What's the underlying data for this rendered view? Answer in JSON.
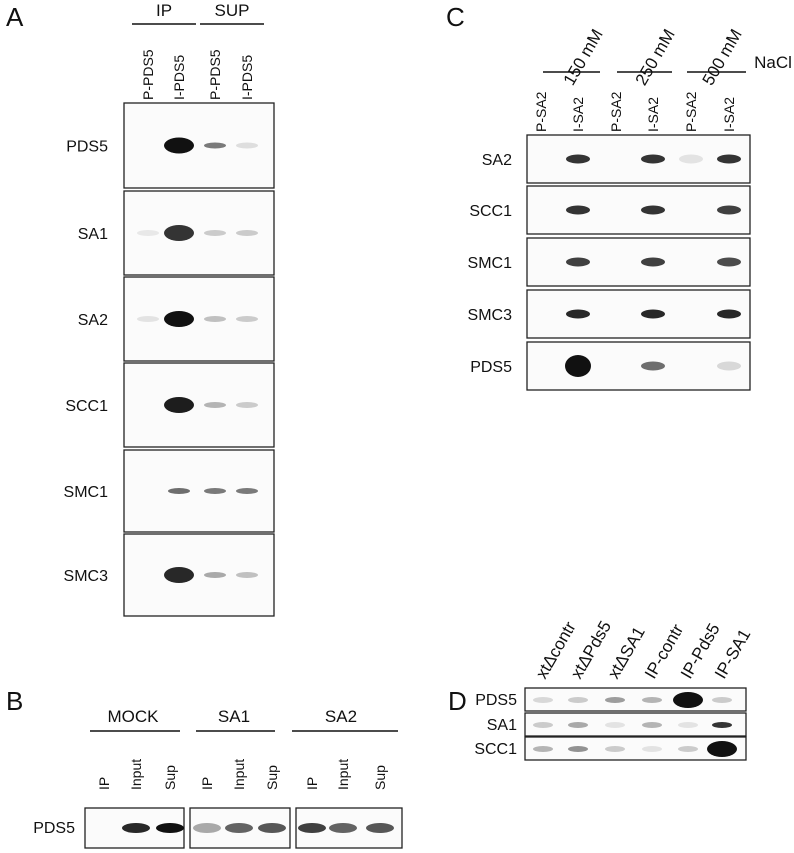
{
  "panels": {
    "A": {
      "letter": "A",
      "groups": [
        "IP",
        "SUP"
      ],
      "lanes": [
        "P-PDS5",
        "I-PDS5",
        "P-PDS5",
        "I-PDS5"
      ],
      "rows": [
        {
          "label": "PDS5",
          "intensity": [
            0,
            1.0,
            0.55,
            0.12
          ]
        },
        {
          "label": "SA1",
          "intensity": [
            0.08,
            0.85,
            0.2,
            0.2
          ]
        },
        {
          "label": "SA2",
          "intensity": [
            0.1,
            1.0,
            0.25,
            0.2
          ]
        },
        {
          "label": "SCC1",
          "intensity": [
            0,
            0.95,
            0.3,
            0.2
          ]
        },
        {
          "label": "SMC1",
          "intensity": [
            0,
            0.6,
            0.55,
            0.55
          ]
        },
        {
          "label": "SMC3",
          "intensity": [
            0,
            0.9,
            0.35,
            0.25
          ]
        }
      ]
    },
    "B": {
      "letter": "B",
      "groups": [
        "MOCK",
        "SA1",
        "SA2"
      ],
      "lanes": [
        "IP",
        "Input",
        "Sup",
        "IP",
        "Input",
        "Sup",
        "IP",
        "Input",
        "Sup"
      ],
      "rows": [
        {
          "label": "PDS5",
          "intensity": [
            0,
            0.9,
            1.0,
            0.35,
            0.65,
            0.7,
            0.8,
            0.65,
            0.7
          ]
        }
      ]
    },
    "C": {
      "letter": "C",
      "groups": [
        "150 mM",
        "250 mM",
        "500 mM"
      ],
      "salt_label": "NaCl",
      "lanes": [
        "P-SA2",
        "I-SA2",
        "P-SA2",
        "I-SA2",
        "P-SA2",
        "I-SA2"
      ],
      "rows": [
        {
          "label": "SA2",
          "intensity": [
            0,
            0.85,
            0,
            0.85,
            0.1,
            0.85
          ]
        },
        {
          "label": "SCC1",
          "intensity": [
            0,
            0.85,
            0,
            0.85,
            0,
            0.8
          ]
        },
        {
          "label": "SMC1",
          "intensity": [
            0,
            0.8,
            0,
            0.8,
            0,
            0.75
          ]
        },
        {
          "label": "SMC3",
          "intensity": [
            0,
            0.9,
            0,
            0.9,
            0,
            0.9
          ]
        },
        {
          "label": "PDS5",
          "intensity": [
            0,
            1.0,
            0,
            0.6,
            0,
            0.15
          ]
        }
      ]
    },
    "D": {
      "letter": "D",
      "lanes": [
        "xtΔcontr",
        "xtΔPds5",
        "xtΔSA1",
        "IP-contr",
        "IP-Pds5",
        "IP-SA1"
      ],
      "rows": [
        {
          "label": "PDS5",
          "intensity": [
            0.15,
            0.2,
            0.4,
            0.3,
            1.0,
            0.2
          ]
        },
        {
          "label": "SA1",
          "intensity": [
            0.2,
            0.35,
            0.1,
            0.3,
            0.1,
            0.85
          ]
        },
        {
          "label": "SCC1",
          "intensity": [
            0.3,
            0.45,
            0.2,
            0.1,
            0.2,
            1.0
          ]
        }
      ]
    }
  }
}
